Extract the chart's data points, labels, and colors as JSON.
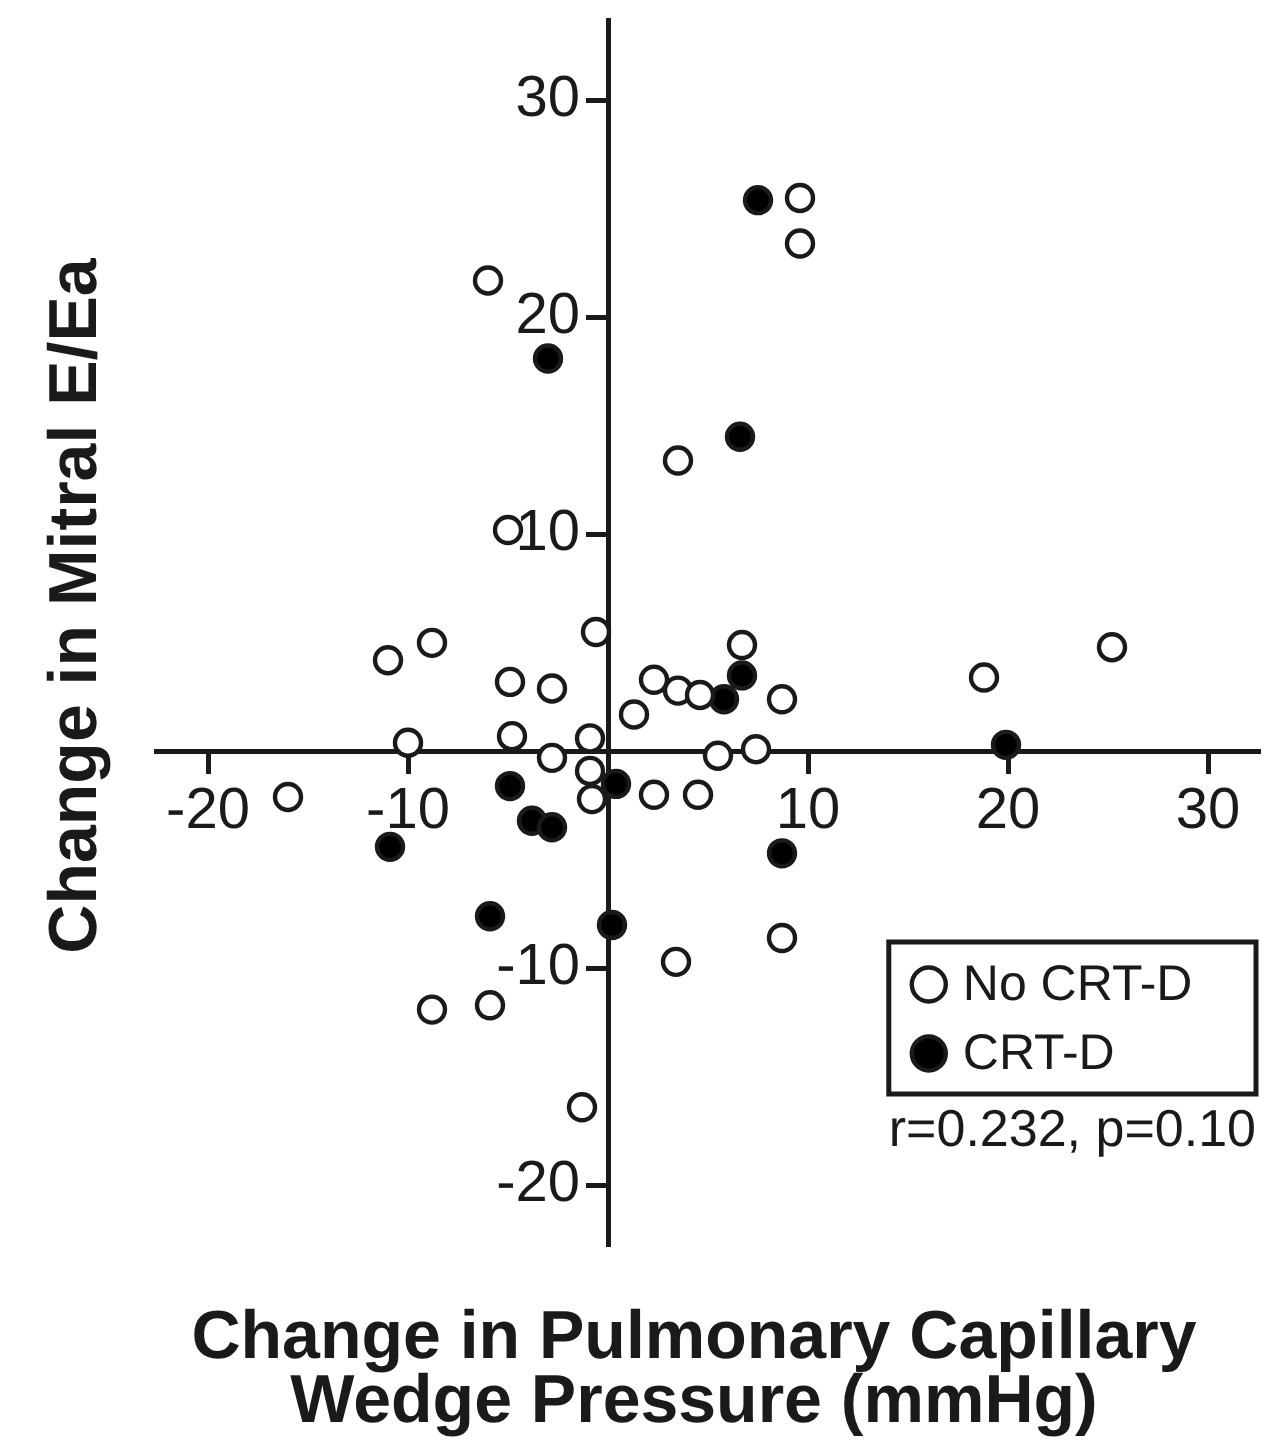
{
  "chart_data": {
    "type": "scatter",
    "xlabel": "Change in Pulmonary Capillary Wedge Pressure (mmHg)",
    "ylabel": "Change in Mitral E/Ea",
    "xlim": [
      -22.6,
      32.5
    ],
    "xticks": [
      -20,
      -10,
      10,
      20,
      30
    ],
    "ylim": [
      -22.7,
      33.7
    ],
    "yticks": [
      -20,
      -10,
      10,
      20,
      30
    ],
    "series": [
      {
        "name": "No CRT-D",
        "color": "#ffffff",
        "x": [
          -6.0,
          -5.0,
          9.6,
          9.6,
          3.5,
          -11.0,
          -8.8,
          -0.6,
          -4.9,
          -2.8,
          1.3,
          -10.0,
          -4.8,
          -0.9,
          -2.8,
          -0.9,
          -0.8,
          -16.0,
          -8.8,
          -5.9,
          -1.3,
          2.3,
          3.5,
          4.6,
          6.7,
          8.7,
          5.5,
          7.4,
          2.3,
          4.5,
          8.7,
          3.4,
          18.8,
          25.2
        ],
        "values": [
          21.7,
          10.2,
          25.5,
          23.4,
          13.4,
          4.2,
          5.0,
          5.5,
          3.2,
          2.9,
          1.7,
          0.4,
          0.7,
          0.6,
          -0.3,
          -0.9,
          -2.2,
          -2.1,
          -11.9,
          -11.7,
          -16.4,
          3.3,
          2.8,
          2.6,
          4.9,
          2.4,
          -0.2,
          0.1,
          -2.0,
          -2.0,
          -8.6,
          -9.7,
          3.4,
          4.8
        ]
      },
      {
        "name": "CRT-D",
        "color": "#000000",
        "x": [
          -3.0,
          7.5,
          6.6,
          0.4,
          -4.9,
          -3.8,
          -2.8,
          -10.9,
          -5.9,
          0.2,
          5.8,
          6.7,
          8.7,
          19.9
        ],
        "values": [
          18.1,
          25.4,
          14.5,
          -1.5,
          -1.6,
          -3.2,
          -3.5,
          -4.4,
          -7.6,
          -8.0,
          2.4,
          3.5,
          -4.7,
          0.3
        ]
      }
    ],
    "annotations": [
      "r=0.232, p=0.10"
    ],
    "marker": "circle",
    "legend": "bottom right",
    "grid": false
  }
}
